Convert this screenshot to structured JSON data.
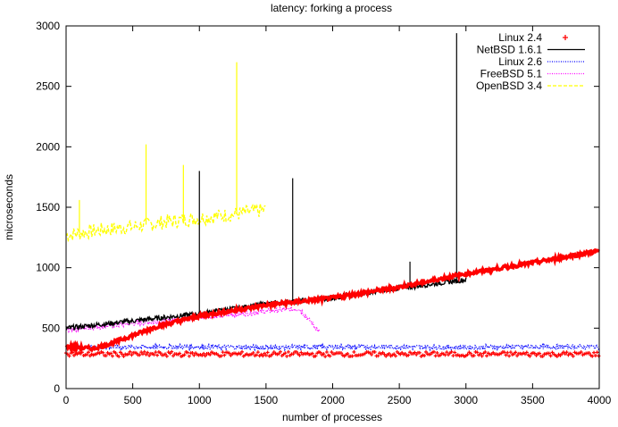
{
  "chart_data": {
    "type": "line",
    "title": "latency: forking a process",
    "xlabel": "number of processes",
    "ylabel": "microseconds",
    "xlim": [
      0,
      4000
    ],
    "ylim": [
      0,
      3000
    ],
    "xticks": [
      "0",
      "500",
      "1000",
      "1500",
      "2000",
      "2500",
      "3000",
      "3500",
      "4000"
    ],
    "yticks": [
      "0",
      "500",
      "1000",
      "1500",
      "2000",
      "2500",
      "3000"
    ],
    "legend_position": "top-right",
    "grid": false,
    "series": [
      {
        "name": "Linux 2.4",
        "color": "#ff0000",
        "style": "points-plus",
        "x": [
          0,
          200,
          300,
          400,
          500,
          700,
          1000,
          1500,
          2000,
          2500,
          3000,
          3500,
          4000
        ],
        "y": [
          350,
          330,
          360,
          400,
          440,
          520,
          600,
          690,
          750,
          840,
          950,
          1040,
          1140
        ],
        "floor_band_y": 285
      },
      {
        "name": "NetBSD 1.6.1",
        "color": "#000000",
        "style": "solid",
        "x": [
          0,
          500,
          1000,
          1500,
          2000,
          2500,
          3000
        ],
        "y": [
          500,
          560,
          620,
          700,
          750,
          830,
          900
        ],
        "spikes": [
          {
            "x": 1000,
            "y": 1800
          },
          {
            "x": 1700,
            "y": 1740
          },
          {
            "x": 2580,
            "y": 1050
          },
          {
            "x": 2930,
            "y": 2940
          }
        ]
      },
      {
        "name": "Linux 2.6",
        "color": "#0000ff",
        "style": "dotted",
        "x": [
          0,
          500,
          1000,
          1500,
          2000,
          2500,
          3000,
          3500,
          4000
        ],
        "y": [
          340,
          345,
          345,
          340,
          345,
          345,
          340,
          345,
          345
        ]
      },
      {
        "name": "FreeBSD 5.1",
        "color": "#ff00ff",
        "style": "dotted",
        "x": [
          0,
          250,
          500,
          750,
          1000,
          1250,
          1500,
          1750,
          1900
        ],
        "y": [
          490,
          510,
          540,
          560,
          590,
          610,
          640,
          660,
          470
        ]
      },
      {
        "name": "OpenBSD 3.4",
        "color": "#ffff00",
        "style": "dashed",
        "x": [
          0,
          250,
          500,
          750,
          1000,
          1250,
          1500
        ],
        "y": [
          1270,
          1310,
          1340,
          1380,
          1410,
          1440,
          1480
        ],
        "spikes": [
          {
            "x": 600,
            "y": 2020
          },
          {
            "x": 1280,
            "y": 2700
          },
          {
            "x": 100,
            "y": 1560
          },
          {
            "x": 880,
            "y": 1850
          }
        ]
      }
    ]
  }
}
